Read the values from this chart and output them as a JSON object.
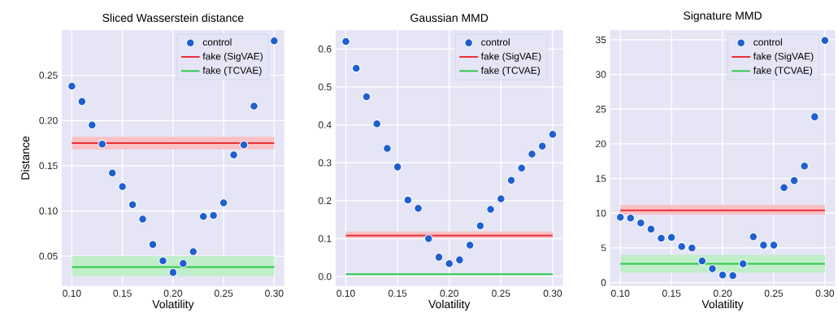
{
  "chart_data": [
    {
      "type": "scatter",
      "title": "Sliced Wasserstein distance",
      "xlabel": "Volatility",
      "ylabel": "Distance",
      "grid": true,
      "legend": "top right",
      "xlim": [
        0.09,
        0.31
      ],
      "ylim": [
        0.017,
        0.3
      ],
      "xticks": [
        {
          "value": 0.1,
          "label": "0.10"
        },
        {
          "value": 0.15,
          "label": "0.15"
        },
        {
          "value": 0.2,
          "label": "0.20"
        },
        {
          "value": 0.25,
          "label": "0.25"
        },
        {
          "value": 0.3,
          "label": "0.30"
        }
      ],
      "yticks": [
        {
          "value": 0.05,
          "label": "0.05"
        },
        {
          "value": 0.1,
          "label": "0.10"
        },
        {
          "value": 0.15,
          "label": "0.15"
        },
        {
          "value": 0.2,
          "label": "0.20"
        },
        {
          "value": 0.25,
          "label": "0.25"
        }
      ],
      "series": [
        {
          "name": "control",
          "marker": "circle",
          "color": "#1f5fd0",
          "x": [
            0.1,
            0.11,
            0.12,
            0.13,
            0.14,
            0.15,
            0.16,
            0.17,
            0.18,
            0.19,
            0.2,
            0.21,
            0.22,
            0.23,
            0.24,
            0.25,
            0.26,
            0.27,
            0.28,
            0.3
          ],
          "values": [
            0.238,
            0.221,
            0.195,
            0.174,
            0.142,
            0.127,
            0.107,
            0.091,
            0.063,
            0.045,
            0.032,
            0.042,
            0.055,
            0.094,
            0.095,
            0.109,
            0.162,
            0.173,
            0.216,
            0.288
          ]
        },
        {
          "name": "fake (SigVAE)",
          "type": "line",
          "color": "#e8303a",
          "x": [
            0.1,
            0.3
          ],
          "values": [
            0.175,
            0.175
          ],
          "lower": [
            0.168,
            0.168
          ],
          "upper": [
            0.182,
            0.182
          ]
        },
        {
          "name": "fake (TCVAE)",
          "type": "line",
          "color": "#2ec84a",
          "x": [
            0.1,
            0.3
          ],
          "values": [
            0.038,
            0.038
          ],
          "lower": [
            0.028,
            0.028
          ],
          "upper": [
            0.05,
            0.05
          ]
        }
      ]
    },
    {
      "type": "scatter",
      "title": "Gaussian MMD",
      "xlabel": "Volatility",
      "grid": true,
      "legend": "top right",
      "xlim": [
        0.09,
        0.31
      ],
      "ylim": [
        -0.025,
        0.65
      ],
      "xticks": [
        {
          "value": 0.1,
          "label": "0.10"
        },
        {
          "value": 0.15,
          "label": "0.15"
        },
        {
          "value": 0.2,
          "label": "0.20"
        },
        {
          "value": 0.25,
          "label": "0.25"
        },
        {
          "value": 0.3,
          "label": "0.30"
        }
      ],
      "yticks": [
        {
          "value": 0,
          "label": "0.0"
        },
        0.1,
        0.2,
        0.3,
        0.4,
        0.5,
        0.6
      ],
      "series": [
        {
          "name": "control",
          "marker": "circle",
          "color": "#1f5fd0",
          "x": [
            0.1,
            0.11,
            0.12,
            0.13,
            0.14,
            0.15,
            0.16,
            0.17,
            0.18,
            0.19,
            0.2,
            0.21,
            0.22,
            0.23,
            0.24,
            0.25,
            0.26,
            0.27,
            0.28,
            0.29,
            0.3
          ],
          "values": [
            0.62,
            0.549,
            0.474,
            0.403,
            0.338,
            0.289,
            0.202,
            0.18,
            0.1,
            0.051,
            0.034,
            0.044,
            0.083,
            0.134,
            0.177,
            0.205,
            0.254,
            0.286,
            0.323,
            0.344,
            0.375
          ]
        },
        {
          "name": "fake (SigVAE)",
          "type": "line",
          "color": "#e8303a",
          "x": [
            0.1,
            0.3
          ],
          "values": [
            0.108,
            0.108
          ],
          "lower": [
            0.101,
            0.101
          ],
          "upper": [
            0.119,
            0.119
          ]
        },
        {
          "name": "fake (TCVAE)",
          "type": "line",
          "color": "#2ec84a",
          "x": [
            0.1,
            0.3
          ],
          "values": [
            0.006,
            0.006
          ]
        }
      ]
    },
    {
      "type": "scatter",
      "title": "Signature MMD",
      "xlabel": "Volatility",
      "grid": true,
      "legend": "top right",
      "xlim": [
        0.09,
        0.31
      ],
      "ylim": [
        -0.5,
        36.4
      ],
      "xticks": [
        {
          "value": 0.1,
          "label": "0.10"
        },
        {
          "value": 0.15,
          "label": "0.15"
        },
        {
          "value": 0.2,
          "label": "0.20"
        },
        {
          "value": 0.25,
          "label": "0.25"
        },
        {
          "value": 0.3,
          "label": "0.30"
        }
      ],
      "yticks": [
        0,
        5,
        10,
        15,
        20,
        25,
        30,
        35
      ],
      "series": [
        {
          "name": "control",
          "marker": "circle",
          "color": "#1f5fd0",
          "x": [
            0.1,
            0.11,
            0.12,
            0.13,
            0.14,
            0.15,
            0.16,
            0.17,
            0.18,
            0.19,
            0.2,
            0.21,
            0.22,
            0.23,
            0.24,
            0.25,
            0.26,
            0.27,
            0.28,
            0.29,
            0.3
          ],
          "values": [
            9.4,
            9.3,
            8.6,
            7.7,
            6.4,
            6.5,
            5.2,
            5.0,
            3.1,
            2.0,
            1.1,
            1.0,
            2.7,
            6.6,
            5.4,
            5.4,
            13.7,
            14.7,
            16.8,
            23.9,
            34.9
          ]
        },
        {
          "name": "fake (SigVAE)",
          "type": "line",
          "color": "#e8303a",
          "x": [
            0.1,
            0.3
          ],
          "values": [
            10.4,
            10.4
          ],
          "lower": [
            9.8,
            9.8
          ],
          "upper": [
            11.2,
            11.2
          ]
        },
        {
          "name": "fake (TCVAE)",
          "type": "line",
          "color": "#2ec84a",
          "x": [
            0.1,
            0.3
          ],
          "values": [
            2.7,
            2.7
          ],
          "lower": [
            1.4,
            1.4
          ],
          "upper": [
            4.0,
            4.0
          ]
        }
      ]
    }
  ]
}
